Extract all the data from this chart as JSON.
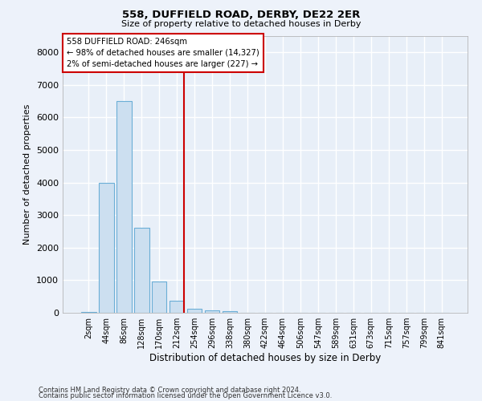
{
  "title": "558, DUFFIELD ROAD, DERBY, DE22 2ER",
  "subtitle": "Size of property relative to detached houses in Derby",
  "xlabel": "Distribution of detached houses by size in Derby",
  "ylabel": "Number of detached properties",
  "categories": [
    "2sqm",
    "44sqm",
    "86sqm",
    "128sqm",
    "170sqm",
    "212sqm",
    "254sqm",
    "296sqm",
    "338sqm",
    "380sqm",
    "422sqm",
    "464sqm",
    "506sqm",
    "547sqm",
    "589sqm",
    "631sqm",
    "673sqm",
    "715sqm",
    "757sqm",
    "799sqm",
    "841sqm"
  ],
  "bar_values": [
    30,
    4000,
    6500,
    2600,
    950,
    370,
    130,
    80,
    50,
    0,
    0,
    0,
    0,
    0,
    0,
    0,
    0,
    0,
    0,
    0,
    0
  ],
  "bar_color": "#ccdff0",
  "bar_edge_color": "#6baed6",
  "background_color": "#e8eff8",
  "grid_color": "#ffffff",
  "vline_color": "#cc0000",
  "vline_pos": 5.4,
  "annotation_text": "558 DUFFIELD ROAD: 246sqm\n← 98% of detached houses are smaller (14,327)\n2% of semi-detached houses are larger (227) →",
  "annotation_box_color": "#ffffff",
  "annotation_box_edgecolor": "#cc0000",
  "ylim": [
    0,
    8500
  ],
  "yticks": [
    0,
    1000,
    2000,
    3000,
    4000,
    5000,
    6000,
    7000,
    8000
  ],
  "fig_facecolor": "#edf2fa",
  "footer1": "Contains HM Land Registry data © Crown copyright and database right 2024.",
  "footer2": "Contains public sector information licensed under the Open Government Licence v3.0."
}
